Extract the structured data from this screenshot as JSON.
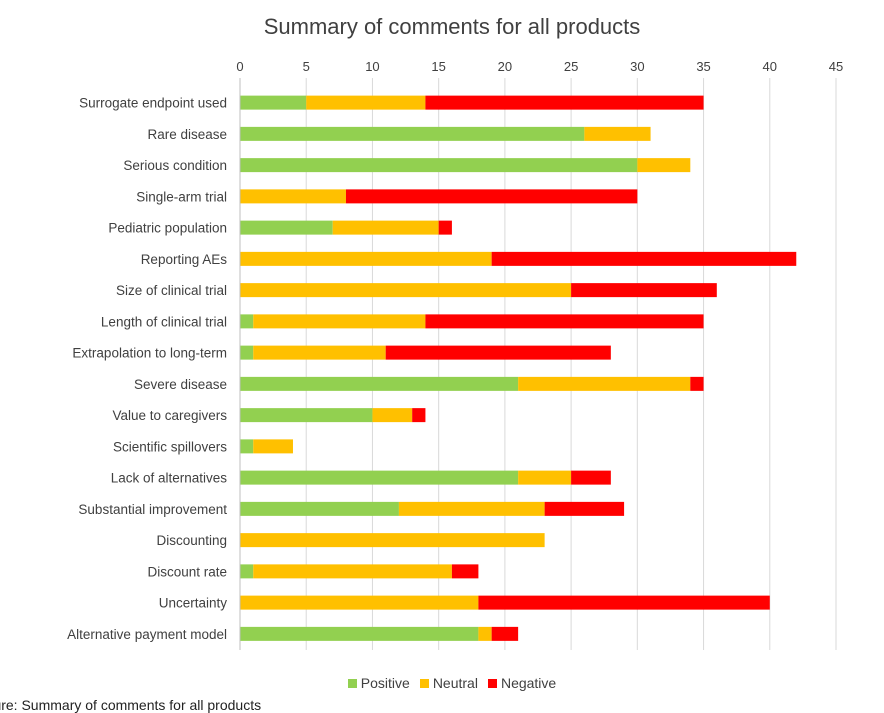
{
  "chart_data": {
    "type": "bar",
    "orientation": "horizontal",
    "stacked": true,
    "title": "Summary of comments for all products",
    "xlim": [
      0,
      45
    ],
    "xticks": [
      0,
      5,
      10,
      15,
      20,
      25,
      30,
      35,
      40,
      45
    ],
    "grid": true,
    "legend_position": "bottom",
    "categories": [
      "Surrogate endpoint used",
      "Rare disease",
      "Serious condition",
      "Single-arm trial",
      "Pediatric population",
      "Reporting AEs",
      "Size of clinical trial",
      "Length of  clinical trial",
      "Extrapolation to long-term",
      "Severe disease",
      "Value to caregivers",
      "Scientific spillovers",
      "Lack of alternatives",
      "Substantial improvement",
      "Discounting",
      "Discount rate",
      "Uncertainty",
      "Alternative payment model"
    ],
    "series": [
      {
        "name": "Positive",
        "color": "#92d050",
        "values": [
          5,
          26,
          30,
          0,
          7,
          0,
          0,
          1,
          1,
          21,
          10,
          1,
          21,
          12,
          0,
          1,
          0,
          18
        ]
      },
      {
        "name": "Neutral",
        "color": "#ffc000",
        "values": [
          9,
          5,
          4,
          8,
          8,
          19,
          25,
          13,
          10,
          13,
          3,
          3,
          4,
          11,
          23,
          15,
          18,
          1
        ]
      },
      {
        "name": "Negative",
        "color": "#ff0000",
        "values": [
          21,
          0,
          0,
          22,
          1,
          23,
          11,
          21,
          17,
          1,
          1,
          0,
          3,
          6,
          0,
          2,
          22,
          2
        ]
      }
    ]
  },
  "caption": "Figure: Summary of comments for all products"
}
